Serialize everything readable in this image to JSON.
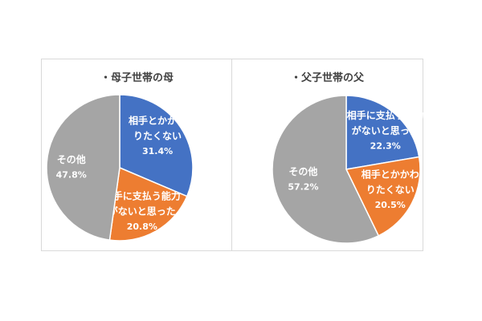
{
  "chart_data": [
    {
      "type": "pie",
      "title": "・母子世帯の母",
      "slices": [
        {
          "label": [
            "相手とかかわ",
            "りたくない"
          ],
          "value": 31.4,
          "value_label": "31.4%",
          "color": "#4472C4"
        },
        {
          "label": [
            "相手に支払う能力",
            "がないと思った"
          ],
          "value": 20.8,
          "value_label": "20.8%",
          "color": "#ED7D31"
        },
        {
          "label": [
            "その他"
          ],
          "value": 47.8,
          "value_label": "47.8%",
          "color": "#A5A5A5"
        }
      ]
    },
    {
      "type": "pie",
      "title": "・父子世帯の父",
      "slices": [
        {
          "label": [
            "相手に支払う能力",
            "がないと思った"
          ],
          "value": 22.3,
          "value_label": "22.3%",
          "color": "#4472C4"
        },
        {
          "label": [
            "相手とかかわ",
            "りたくない"
          ],
          "value": 20.5,
          "value_label": "20.5%",
          "color": "#ED7D31"
        },
        {
          "label": [
            "その他"
          ],
          "value": 57.2,
          "value_label": "57.2%",
          "color": "#A5A5A5"
        }
      ]
    }
  ]
}
